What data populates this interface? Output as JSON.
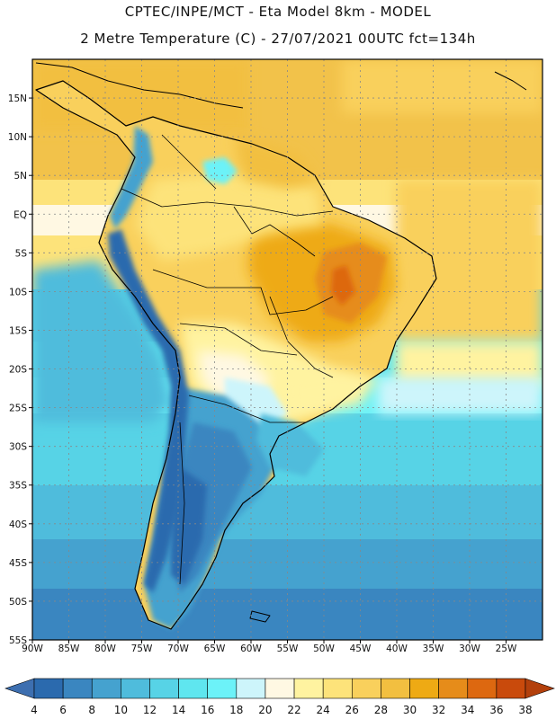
{
  "header": {
    "line1": "CPTEC/INPE/MCT  -  Eta Model 8km  -  MODEL",
    "line2": "2 Metre Temperature (C)  -  27/07/2021 00UTC fct=134h"
  },
  "map": {
    "lon_range": [
      -90,
      -20
    ],
    "lat_range": [
      -55,
      20
    ],
    "lon_ticks": [
      {
        "value": -90,
        "label": "90W"
      },
      {
        "value": -85,
        "label": "85W"
      },
      {
        "value": -80,
        "label": "80W"
      },
      {
        "value": -75,
        "label": "75W"
      },
      {
        "value": -70,
        "label": "70W"
      },
      {
        "value": -65,
        "label": "65W"
      },
      {
        "value": -60,
        "label": "60W"
      },
      {
        "value": -55,
        "label": "55W"
      },
      {
        "value": -50,
        "label": "50W"
      },
      {
        "value": -45,
        "label": "45W"
      },
      {
        "value": -40,
        "label": "40W"
      },
      {
        "value": -35,
        "label": "35W"
      },
      {
        "value": -30,
        "label": "30W"
      },
      {
        "value": -25,
        "label": "25W"
      }
    ],
    "lat_ticks": [
      {
        "value": 15,
        "label": "15N"
      },
      {
        "value": 10,
        "label": "10N"
      },
      {
        "value": 5,
        "label": "5N"
      },
      {
        "value": 0,
        "label": "EQ"
      },
      {
        "value": -5,
        "label": "5S"
      },
      {
        "value": -10,
        "label": "10S"
      },
      {
        "value": -15,
        "label": "15S"
      },
      {
        "value": -20,
        "label": "20S"
      },
      {
        "value": -25,
        "label": "25S"
      },
      {
        "value": -30,
        "label": "30S"
      },
      {
        "value": -35,
        "label": "35S"
      },
      {
        "value": -40,
        "label": "40S"
      },
      {
        "value": -45,
        "label": "45S"
      },
      {
        "value": -50,
        "label": "50S"
      },
      {
        "value": -55,
        "label": "55S"
      }
    ]
  },
  "colorbar": {
    "labels": [
      "4",
      "6",
      "8",
      "10",
      "12",
      "14",
      "16",
      "18",
      "20",
      "22",
      "24",
      "26",
      "28",
      "30",
      "32",
      "34",
      "36",
      "38"
    ],
    "colors": [
      "#2b6aae",
      "#3a86c0",
      "#45a2cf",
      "#4fbcdc",
      "#57d3e6",
      "#5fe6ef",
      "#6cf2f8",
      "#cdf5fb",
      "#fff8e3",
      "#fff3a0",
      "#fde37a",
      "#f9d05c",
      "#f2bf40",
      "#eeaa14",
      "#e68c1a",
      "#dd6810",
      "#c94a0c"
    ],
    "low_end_color": "#3d6fb0",
    "high_end_color": "#b3400c"
  }
}
